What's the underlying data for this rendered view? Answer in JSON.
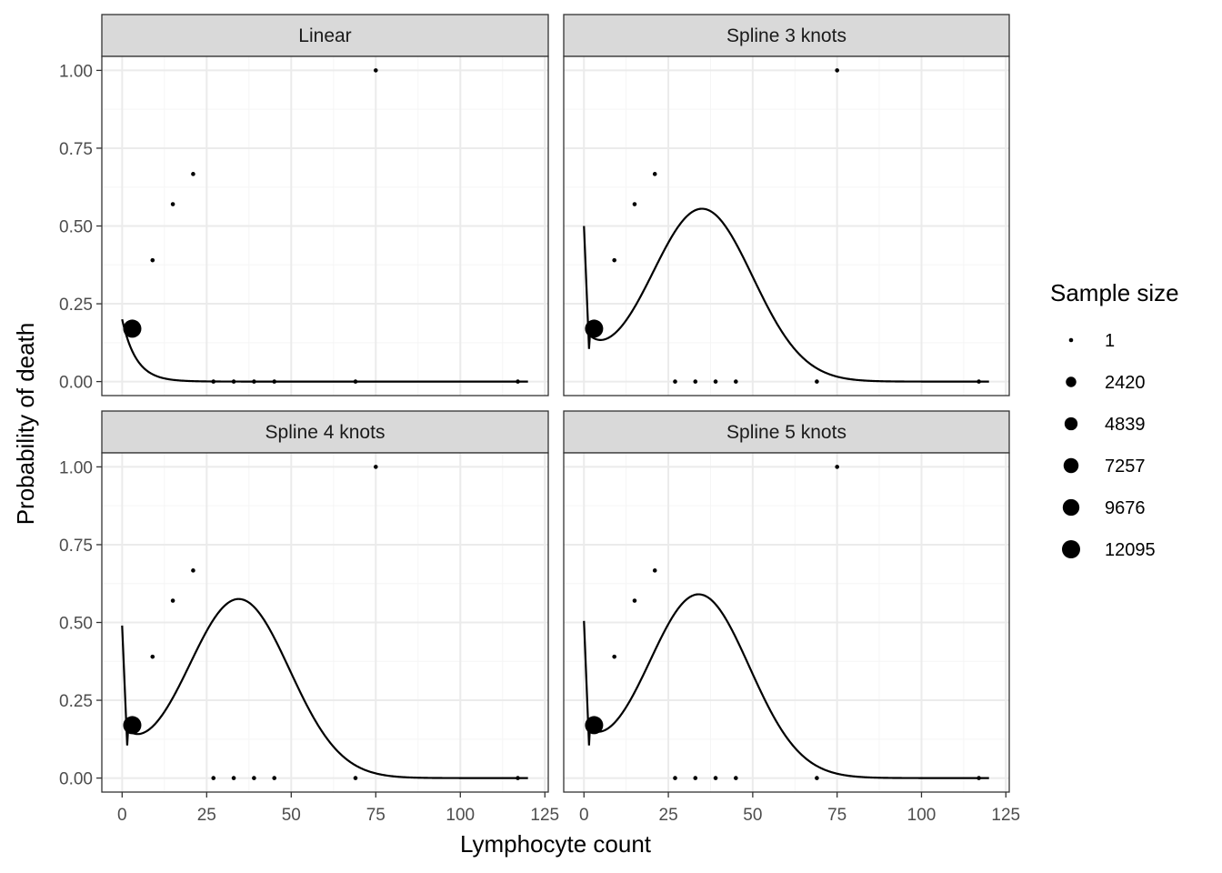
{
  "chart_data": {
    "type": "scatter",
    "xlabel": "Lymphocyte count",
    "ylabel": "Probability of death",
    "xlim": [
      -6,
      126
    ],
    "ylim": [
      -0.045,
      1.045
    ],
    "x_ticks": [
      0,
      25,
      50,
      75,
      100,
      125
    ],
    "x_tick_labels": [
      "0",
      "25",
      "50",
      "75",
      "100",
      "125"
    ],
    "y_ticks": [
      0,
      0.25,
      0.5,
      0.75,
      1.0
    ],
    "y_tick_labels": [
      "0.00",
      "0.25",
      "0.50",
      "0.75",
      "1.00"
    ],
    "grid": true,
    "facets": [
      {
        "label": "Linear",
        "curve": "linear",
        "curve_params": {
          "start": 0.2
        }
      },
      {
        "label": "Spline 3 knots",
        "curve": "spline",
        "curve_params": {
          "start": 0.5,
          "min_x": 1.5,
          "min_y": 0.105,
          "peak_x": 35,
          "peak_y": 0.555,
          "width": 15
        }
      },
      {
        "label": "Spline 4 knots",
        "curve": "spline",
        "curve_params": {
          "start": 0.49,
          "min_x": 1.5,
          "min_y": 0.105,
          "peak_x": 34.5,
          "peak_y": 0.575,
          "width": 15
        }
      },
      {
        "label": "Spline 5 knots",
        "curve": "spline",
        "curve_params": {
          "start": 0.505,
          "min_x": 1.5,
          "min_y": 0.105,
          "peak_x": 34,
          "peak_y": 0.59,
          "width": 15
        }
      }
    ],
    "points": [
      {
        "x": 3,
        "y": 0.17,
        "size": 12095
      },
      {
        "x": 9,
        "y": 0.39,
        "size": 1
      },
      {
        "x": 15,
        "y": 0.57,
        "size": 1
      },
      {
        "x": 21,
        "y": 0.667,
        "size": 1
      },
      {
        "x": 27,
        "y": 0.0,
        "size": 1
      },
      {
        "x": 33,
        "y": 0.0,
        "size": 1
      },
      {
        "x": 39,
        "y": 0.0,
        "size": 1
      },
      {
        "x": 45,
        "y": 0.0,
        "size": 1
      },
      {
        "x": 69,
        "y": 0.0,
        "size": 1
      },
      {
        "x": 75,
        "y": 1.0,
        "size": 1
      },
      {
        "x": 117,
        "y": 0.0,
        "size": 1
      }
    ],
    "legend": {
      "title": "Sample size",
      "position": "right",
      "entries": [
        {
          "label": "1",
          "size": 1
        },
        {
          "label": "2420",
          "size": 2420
        },
        {
          "label": "4839",
          "size": 4839
        },
        {
          "label": "7257",
          "size": 7257
        },
        {
          "label": "9676",
          "size": 9676
        },
        {
          "label": "12095",
          "size": 12095
        }
      ]
    },
    "colors": {
      "point": "#000000",
      "line": "#000000",
      "strip_fill": "#d9d9d9",
      "strip_border": "#333333",
      "panel_border": "#333333",
      "grid_major": "#ebebeb",
      "grid_minor": "#f5f5f5",
      "text": "#4d4d4d",
      "title_text": "#000000"
    }
  }
}
